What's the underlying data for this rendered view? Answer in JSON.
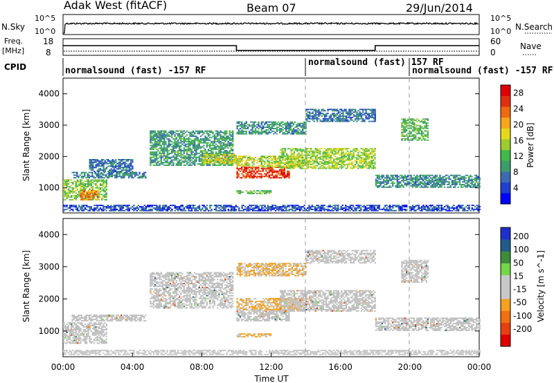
{
  "header": {
    "station": "Adak West (fitACF)",
    "beam": "Beam 07",
    "date": "29/Jun/2014"
  },
  "nsky_panel": {
    "label": "N.Sky",
    "right_label": "N.Search",
    "left_ticks": [
      "10^5",
      "10^0"
    ],
    "right_ticks": [
      "10^5",
      "10^0"
    ]
  },
  "freq_panel": {
    "label_line1": "Freq.",
    "label_line2": "[MHz]",
    "right_label": "Nave",
    "left_ticks": [
      "18",
      "8"
    ],
    "right_ticks": [
      "60",
      "0"
    ]
  },
  "cpid": {
    "label": "CPID",
    "segments": [
      {
        "text": "normalsound (fast) -157 RF",
        "start_hour": 0
      },
      {
        "text": "normalsound (fast) 157 RF",
        "start_hour": 14
      },
      {
        "text": "normalsound (fast) -157 RF",
        "start_hour": 20
      }
    ]
  },
  "colors": {
    "power_scale": [
      "#0000ff",
      "#2040d0",
      "#3a6db0",
      "#3c9d6a",
      "#41b94c",
      "#9ccc2e",
      "#e6d91c",
      "#f4a81a",
      "#ee6a10",
      "#e03010",
      "#e00000"
    ],
    "velocity_scale": [
      "#1f2fc9",
      "#235b8a",
      "#3c8c3a",
      "#74d648",
      "#c8c8c8",
      "#c8c8c8",
      "#f4a020",
      "#f07010",
      "#e84010",
      "#e00000"
    ],
    "ground_scatter": "#c0c0c0"
  },
  "chart_data": [
    {
      "type": "heatmap",
      "title": "",
      "xlabel": "",
      "ylabel": "Slant Range [km]",
      "xlim": [
        0,
        24
      ],
      "ylim": [
        200,
        4500
      ],
      "y_ticks": [
        1000,
        2000,
        3000,
        4000
      ],
      "colorbar": {
        "label": "Power [dB]",
        "ticks": [
          "4",
          "8",
          "12",
          "16",
          "20",
          "24",
          "28"
        ],
        "range": [
          0,
          30
        ]
      },
      "echo_bands": [
        {
          "t_start": 0.0,
          "t_end": 2.5,
          "r_low": 600,
          "r_high": 1250,
          "level": 14
        },
        {
          "t_start": 1.0,
          "t_end": 2.0,
          "r_low": 600,
          "r_high": 900,
          "level": 22
        },
        {
          "t_start": 0.5,
          "t_end": 4.8,
          "r_low": 1300,
          "r_high": 1500,
          "level": 8
        },
        {
          "t_start": 1.5,
          "t_end": 4.0,
          "r_low": 1500,
          "r_high": 1900,
          "level": 7
        },
        {
          "t_start": 5.0,
          "t_end": 9.8,
          "r_low": 1700,
          "r_high": 2800,
          "level": 10
        },
        {
          "t_start": 8.0,
          "t_end": 10.0,
          "r_low": 1750,
          "r_high": 2050,
          "level": 17
        },
        {
          "t_start": 10.0,
          "t_end": 13.0,
          "r_low": 1300,
          "r_high": 1650,
          "level": 26
        },
        {
          "t_start": 10.0,
          "t_end": 14.0,
          "r_low": 1650,
          "r_high": 2000,
          "level": 16
        },
        {
          "t_start": 12.5,
          "t_end": 18.0,
          "r_low": 1600,
          "r_high": 2250,
          "level": 15
        },
        {
          "t_start": 10.0,
          "t_end": 14.0,
          "r_low": 2700,
          "r_high": 3100,
          "level": 9
        },
        {
          "t_start": 14.0,
          "t_end": 18.0,
          "r_low": 3100,
          "r_high": 3500,
          "level": 7
        },
        {
          "t_start": 10.0,
          "t_end": 12.0,
          "r_low": 800,
          "r_high": 900,
          "level": 12
        },
        {
          "t_start": 18.0,
          "t_end": 24.0,
          "r_low": 1000,
          "r_high": 1400,
          "level": 9
        },
        {
          "t_start": 19.5,
          "t_end": 21.0,
          "r_low": 2500,
          "r_high": 3200,
          "level": 12
        },
        {
          "t_start": 0.0,
          "t_end": 24.0,
          "r_low": 250,
          "r_high": 450,
          "level": 5
        }
      ]
    },
    {
      "type": "heatmap",
      "title": "",
      "xlabel": "Time UT",
      "ylabel": "Slant Range [km]",
      "xlim": [
        0,
        24
      ],
      "ylim": [
        200,
        4500
      ],
      "x_ticks": [
        "00:00",
        "04:00",
        "08:00",
        "12:00",
        "16:00",
        "20:00",
        "00:00"
      ],
      "y_ticks": [
        1000,
        2000,
        3000,
        4000
      ],
      "colorbar": {
        "label": "Velocity [m s^-1]",
        "ticks": [
          "200",
          "100",
          "50",
          "15",
          "-15",
          "-50",
          "-100",
          "-200"
        ],
        "range": [
          -250,
          250
        ]
      },
      "echo_bands": [
        {
          "t_start": 0.0,
          "t_end": 2.5,
          "r_low": 600,
          "r_high": 1250,
          "level": 0,
          "ground": true
        },
        {
          "t_start": 0.5,
          "t_end": 4.8,
          "r_low": 1300,
          "r_high": 1500,
          "level": 0,
          "ground": true
        },
        {
          "t_start": 5.0,
          "t_end": 9.8,
          "r_low": 1700,
          "r_high": 2800,
          "level": 0,
          "ground": true
        },
        {
          "t_start": 10.0,
          "t_end": 13.0,
          "r_low": 1300,
          "r_high": 1650,
          "level": 0,
          "ground": true
        },
        {
          "t_start": 10.0,
          "t_end": 14.0,
          "r_low": 1650,
          "r_high": 2000,
          "level": -60
        },
        {
          "t_start": 12.5,
          "t_end": 18.0,
          "r_low": 1600,
          "r_high": 2250,
          "level": 0,
          "ground": true
        },
        {
          "t_start": 10.0,
          "t_end": 14.0,
          "r_low": 2700,
          "r_high": 3100,
          "level": -50
        },
        {
          "t_start": 14.0,
          "t_end": 18.0,
          "r_low": 3100,
          "r_high": 3500,
          "level": 0,
          "ground": true
        },
        {
          "t_start": 10.0,
          "t_end": 12.0,
          "r_low": 800,
          "r_high": 900,
          "level": -60
        },
        {
          "t_start": 18.0,
          "t_end": 24.0,
          "r_low": 1000,
          "r_high": 1400,
          "level": 0,
          "ground": true
        },
        {
          "t_start": 19.5,
          "t_end": 21.0,
          "r_low": 2500,
          "r_high": 3200,
          "level": 0,
          "ground": true
        },
        {
          "t_start": 0.0,
          "t_end": 24.0,
          "r_low": 250,
          "r_high": 400,
          "level": 20
        }
      ]
    }
  ]
}
